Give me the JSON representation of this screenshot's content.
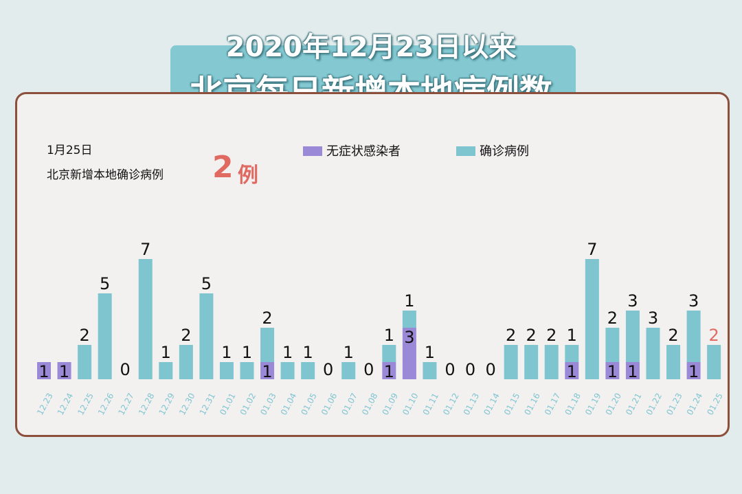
{
  "title": {
    "line1": "2020年12月23日以来",
    "line2": "北京每日新增本地病例数"
  },
  "summary": {
    "date": "1月25日",
    "label": "北京新增本地确诊病例",
    "value": "2",
    "unit": "例"
  },
  "colors": {
    "confirmed": "#7ec5d0",
    "asymptomatic": "#9a89d6",
    "highlight": "#e06a61",
    "tick": "#7ec5d0",
    "panel_border": "#8b4f3c",
    "banner": "#84c9d2"
  },
  "legend": [
    {
      "key": "asymptomatic",
      "label": "无症状感染者",
      "color": "#9a89d6"
    },
    {
      "key": "confirmed",
      "label": "确诊病例",
      "color": "#7ec5d0"
    }
  ],
  "chart_data": {
    "type": "bar",
    "stacked": true,
    "categories": [
      "12.23",
      "12.24",
      "12.25",
      "12.26",
      "12.27",
      "12.28",
      "12.29",
      "12.30",
      "12.31",
      "01.01",
      "01.02",
      "01.03",
      "01.04",
      "01.05",
      "01.06",
      "01.07",
      "01.08",
      "01.09",
      "01.10",
      "01.11",
      "01.12",
      "01.13",
      "01.14",
      "01.15",
      "01.16",
      "01.17",
      "01.18",
      "01.19",
      "01.20",
      "01.21",
      "01.22",
      "01.23",
      "01.24",
      "01.25"
    ],
    "series": [
      {
        "name": "无症状感染者",
        "values": [
          1,
          1,
          0,
          0,
          0,
          0,
          0,
          0,
          0,
          0,
          0,
          1,
          0,
          0,
          0,
          0,
          0,
          1,
          3,
          0,
          0,
          0,
          0,
          0,
          0,
          0,
          1,
          0,
          1,
          1,
          0,
          0,
          1,
          0
        ]
      },
      {
        "name": "确诊病例",
        "values": [
          0,
          0,
          2,
          5,
          0,
          7,
          1,
          2,
          5,
          1,
          1,
          2,
          1,
          1,
          0,
          1,
          0,
          1,
          1,
          1,
          0,
          0,
          0,
          2,
          2,
          2,
          1,
          7,
          2,
          3,
          3,
          2,
          3,
          2
        ]
      }
    ],
    "legend_position": "top-center",
    "grid": false,
    "ylim": [
      0,
      7.5
    ]
  }
}
